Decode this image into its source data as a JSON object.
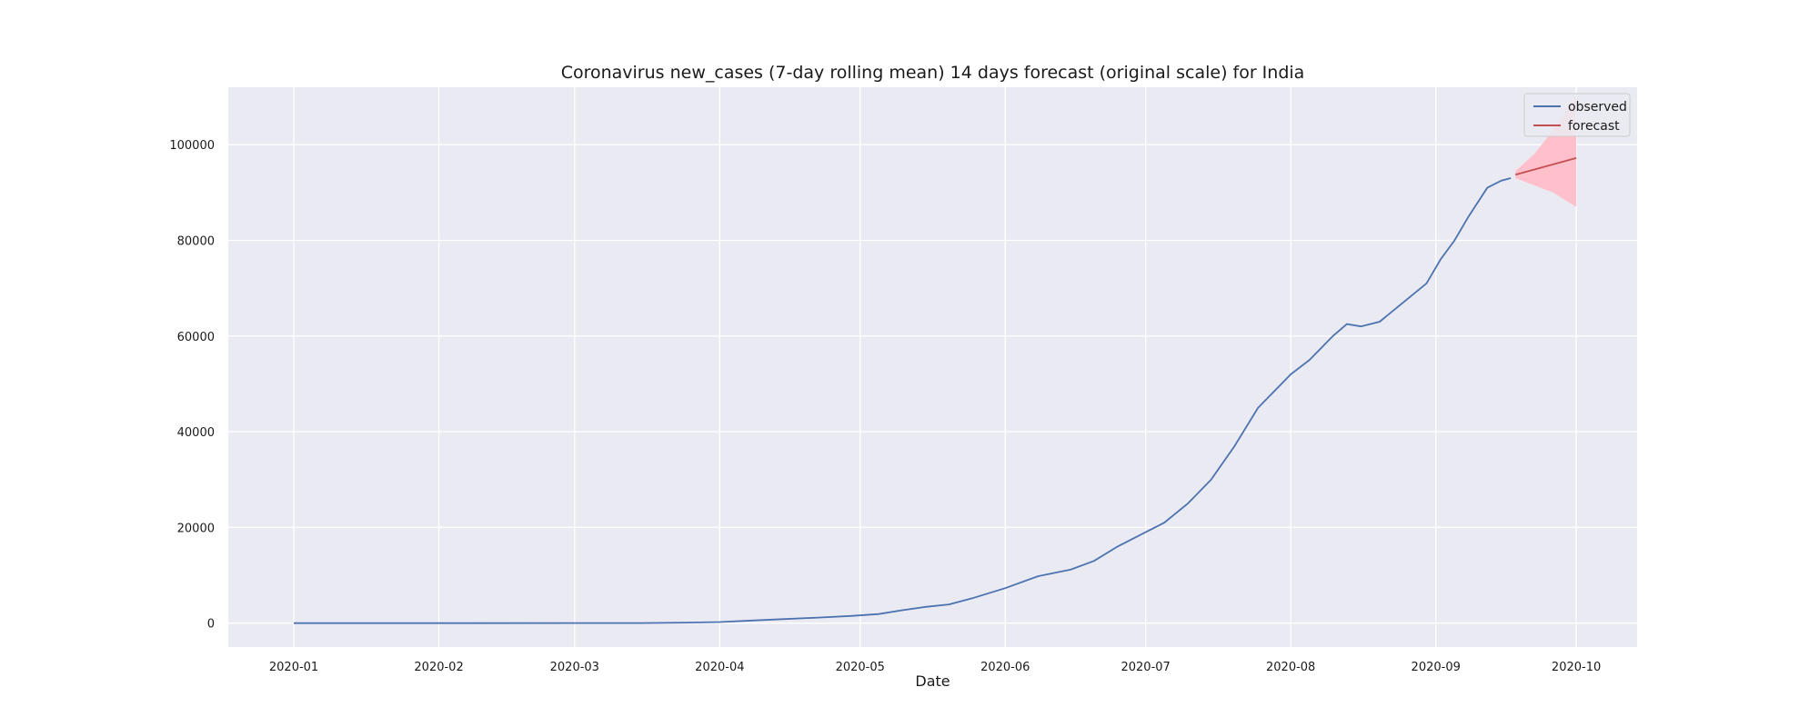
{
  "chart_data": {
    "type": "line",
    "title": "Coronavirus new_cases (7-day rolling mean) 14 days forecast (original scale) for India",
    "xlabel": "Date",
    "ylabel": "",
    "x_ticks": [
      "2020-01",
      "2020-02",
      "2020-03",
      "2020-04",
      "2020-05",
      "2020-06",
      "2020-07",
      "2020-08",
      "2020-09",
      "2020-10"
    ],
    "y_ticks": [
      0,
      20000,
      40000,
      60000,
      80000,
      100000
    ],
    "xlim": [
      "2019-12-18",
      "2020-10-14"
    ],
    "ylim": [
      -5000,
      112000
    ],
    "grid": true,
    "legend_position": "top-right",
    "colors": {
      "background": "#eaeaf2",
      "grid": "#ffffff",
      "observed": "#4c72b0",
      "forecast": "#c44e52",
      "interval": "#ffc0cb"
    },
    "series": [
      {
        "name": "observed",
        "points": [
          [
            "2020-01-01",
            0
          ],
          [
            "2020-02-01",
            0
          ],
          [
            "2020-03-01",
            10
          ],
          [
            "2020-03-15",
            20
          ],
          [
            "2020-03-25",
            100
          ],
          [
            "2020-04-01",
            220
          ],
          [
            "2020-04-08",
            550
          ],
          [
            "2020-04-15",
            850
          ],
          [
            "2020-04-22",
            1150
          ],
          [
            "2020-04-29",
            1500
          ],
          [
            "2020-05-05",
            1900
          ],
          [
            "2020-05-10",
            2700
          ],
          [
            "2020-05-15",
            3400
          ],
          [
            "2020-05-20",
            3900
          ],
          [
            "2020-05-25",
            5200
          ],
          [
            "2020-06-01",
            7300
          ],
          [
            "2020-06-08",
            9800
          ],
          [
            "2020-06-15",
            11200
          ],
          [
            "2020-06-20",
            13000
          ],
          [
            "2020-06-25",
            16000
          ],
          [
            "2020-07-01",
            19000
          ],
          [
            "2020-07-05",
            21000
          ],
          [
            "2020-07-10",
            25000
          ],
          [
            "2020-07-15",
            30000
          ],
          [
            "2020-07-20",
            37000
          ],
          [
            "2020-07-25",
            45000
          ],
          [
            "2020-08-01",
            52000
          ],
          [
            "2020-08-05",
            55000
          ],
          [
            "2020-08-10",
            60000
          ],
          [
            "2020-08-13",
            62500
          ],
          [
            "2020-08-16",
            62000
          ],
          [
            "2020-08-20",
            63000
          ],
          [
            "2020-08-25",
            67000
          ],
          [
            "2020-08-30",
            71000
          ],
          [
            "2020-09-02",
            76000
          ],
          [
            "2020-09-05",
            80000
          ],
          [
            "2020-09-08",
            85000
          ],
          [
            "2020-09-12",
            91000
          ],
          [
            "2020-09-15",
            92500
          ],
          [
            "2020-09-17",
            93000
          ]
        ]
      },
      {
        "name": "forecast",
        "points": [
          [
            "2020-09-18",
            93700
          ],
          [
            "2020-10-01",
            97200
          ]
        ],
        "interval": {
          "dates": [
            "2020-09-18",
            "2020-09-22",
            "2020-09-26",
            "2020-10-01"
          ],
          "lower": [
            93000,
            91500,
            90000,
            87000
          ],
          "upper": [
            94500,
            98000,
            103000,
            110000
          ]
        }
      }
    ]
  }
}
